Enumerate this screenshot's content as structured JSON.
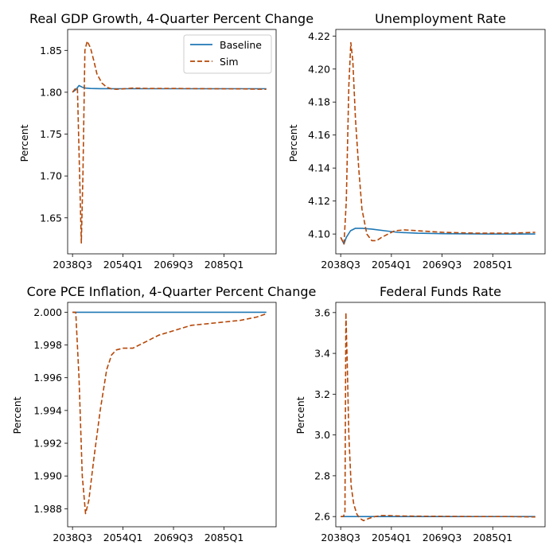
{
  "colors": {
    "baseline": "#1f77b4",
    "sim": "#b54708"
  },
  "legend": [
    {
      "label": "Baseline",
      "style": "solid"
    },
    {
      "label": "Sim",
      "style": "dashed"
    }
  ],
  "chart_data": [
    {
      "type": "line",
      "title": "Real GDP Growth, 4-Quarter Percent Change",
      "xlabel": "",
      "ylabel": "Percent",
      "xticks": [
        "2038Q3",
        "2054Q1",
        "2069Q3",
        "2085Q1"
      ],
      "xlim": [
        2037,
        2101
      ],
      "ylim": [
        1.607,
        1.875
      ],
      "yticks": [
        "1.65",
        "1.70",
        "1.75",
        "1.80",
        "1.85"
      ],
      "ytick_values": [
        1.65,
        1.7,
        1.75,
        1.8,
        1.85
      ],
      "legend": "top-right",
      "series": [
        {
          "name": "Baseline",
          "style": "solid",
          "x": [
            2038.5,
            2039.5,
            2040.5,
            2041.5,
            2042.5,
            2044,
            2047,
            2052,
            2060,
            2080,
            2098
          ],
          "y": [
            1.8,
            1.803,
            1.808,
            1.806,
            1.805,
            1.8045,
            1.8043,
            1.8042,
            1.8042,
            1.8042,
            1.8042
          ]
        },
        {
          "name": "Sim",
          "style": "dashed",
          "x": [
            2038.5,
            2039.3,
            2040,
            2040.7,
            2041.2,
            2041.7,
            2042.3,
            2043,
            2044,
            2045,
            2046,
            2047.5,
            2049,
            2050.5,
            2052,
            2054,
            2057,
            2062,
            2070,
            2080,
            2090,
            2098
          ],
          "y": [
            1.8,
            1.804,
            1.805,
            1.7,
            1.62,
            1.7,
            1.85,
            1.861,
            1.853,
            1.838,
            1.822,
            1.811,
            1.806,
            1.804,
            1.8035,
            1.804,
            1.805,
            1.8045,
            1.8045,
            1.8042,
            1.804,
            1.8035
          ]
        }
      ]
    },
    {
      "type": "line",
      "title": "Unemployment Rate",
      "xlabel": "",
      "ylabel": "Percent",
      "xticks": [
        "2038Q3",
        "2054Q1",
        "2069Q3",
        "2085Q1"
      ],
      "xlim": [
        2037,
        2101
      ],
      "ylim": [
        4.088,
        4.224
      ],
      "yticks": [
        "4.10",
        "4.12",
        "4.14",
        "4.16",
        "4.18",
        "4.20",
        "4.22"
      ],
      "ytick_values": [
        4.1,
        4.12,
        4.14,
        4.16,
        4.18,
        4.2,
        4.22
      ],
      "series": [
        {
          "name": "Baseline",
          "style": "solid",
          "x": [
            2038.5,
            2039.5,
            2040.2,
            2041.5,
            2043,
            2045,
            2048,
            2052,
            2056,
            2062,
            2070,
            2085,
            2098
          ],
          "y": [
            4.098,
            4.094,
            4.098,
            4.102,
            4.1035,
            4.1035,
            4.103,
            4.102,
            4.101,
            4.1005,
            4.1002,
            4.1,
            4.1
          ]
        },
        {
          "name": "Sim",
          "style": "dashed",
          "x": [
            2038.5,
            2039.5,
            2040.2,
            2041,
            2041.6,
            2042.2,
            2043,
            2044,
            2045,
            2046.5,
            2048,
            2049.5,
            2051,
            2053,
            2055,
            2058,
            2062,
            2070,
            2080,
            2090,
            2098
          ],
          "y": [
            4.098,
            4.094,
            4.12,
            4.19,
            4.216,
            4.205,
            4.17,
            4.14,
            4.115,
            4.1,
            4.096,
            4.096,
            4.098,
            4.1,
            4.102,
            4.1025,
            4.102,
            4.101,
            4.1005,
            4.1005,
            4.101
          ]
        }
      ]
    },
    {
      "type": "line",
      "title": "Core PCE Inflation, 4-Quarter Percent Change",
      "xlabel": "",
      "ylabel": "Percent",
      "xticks": [
        "2038Q3",
        "2054Q1",
        "2069Q3",
        "2085Q1"
      ],
      "xlim": [
        2037,
        2101
      ],
      "ylim": [
        1.9869,
        2.0006
      ],
      "yticks": [
        "1.988",
        "1.990",
        "1.992",
        "1.994",
        "1.996",
        "1.998",
        "2.000"
      ],
      "ytick_values": [
        1.988,
        1.99,
        1.992,
        1.994,
        1.996,
        1.998,
        2.0
      ],
      "series": [
        {
          "name": "Baseline",
          "style": "solid",
          "x": [
            2038.5,
            2060,
            2098
          ],
          "y": [
            2.0,
            2.0,
            2.0
          ]
        },
        {
          "name": "Sim",
          "style": "dashed",
          "x": [
            2038.5,
            2039.5,
            2040.5,
            2041.5,
            2042.5,
            2043.5,
            2045,
            2047,
            2049,
            2050.5,
            2052,
            2054,
            2057,
            2060,
            2065,
            2070,
            2075,
            2080,
            2085,
            2090,
            2095,
            2098
          ],
          "y": [
            2.0,
            2.0,
            1.996,
            1.99,
            1.9877,
            1.9885,
            1.991,
            1.994,
            1.9965,
            1.9974,
            1.9977,
            1.9978,
            1.9978,
            1.9981,
            1.9986,
            1.9989,
            1.9992,
            1.9993,
            1.9994,
            1.9995,
            1.9997,
            1.9999
          ]
        }
      ]
    },
    {
      "type": "line",
      "title": "Federal Funds Rate",
      "xlabel": "",
      "ylabel": "Percent",
      "xticks": [
        "2038Q3",
        "2054Q1",
        "2069Q3",
        "2085Q1"
      ],
      "xlim": [
        2037,
        2101
      ],
      "ylim": [
        2.55,
        3.65
      ],
      "yticks": [
        "2.6",
        "2.8",
        "3.0",
        "3.2",
        "3.4",
        "3.6"
      ],
      "ytick_values": [
        2.6,
        2.8,
        3.0,
        3.2,
        3.4,
        3.6
      ],
      "series": [
        {
          "name": "Baseline",
          "style": "solid",
          "x": [
            2038.5,
            2060,
            2098
          ],
          "y": [
            2.6,
            2.6,
            2.6
          ]
        },
        {
          "name": "Sim",
          "style": "dashed",
          "x": [
            2038.5,
            2039.3,
            2039.8,
            2040.1,
            2040.5,
            2041,
            2041.7,
            2042.5,
            2043.5,
            2044.5,
            2045.5,
            2047,
            2049,
            2051,
            2053,
            2056,
            2062,
            2070,
            2080,
            2090,
            2098
          ],
          "y": [
            2.6,
            2.6,
            2.62,
            3.6,
            3.35,
            3.0,
            2.75,
            2.66,
            2.61,
            2.59,
            2.58,
            2.59,
            2.6,
            2.605,
            2.605,
            2.603,
            2.602,
            2.601,
            2.6,
            2.6,
            2.598
          ]
        }
      ]
    }
  ]
}
